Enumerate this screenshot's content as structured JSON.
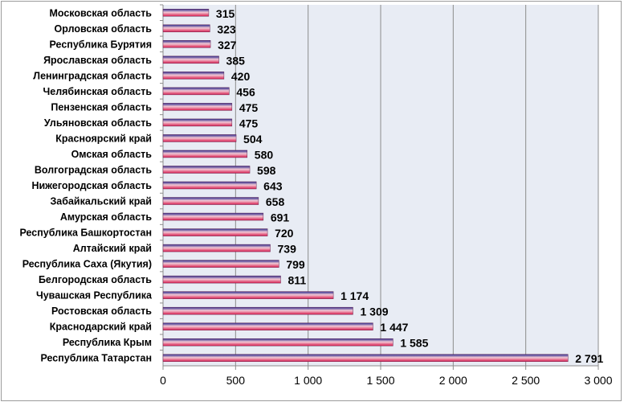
{
  "chart_data": {
    "type": "bar",
    "orientation": "horizontal",
    "title": "",
    "xlabel": "",
    "ylabel": "",
    "xlim": [
      0,
      3000
    ],
    "x_ticks": [
      0,
      500,
      1000,
      1500,
      2000,
      2500,
      3000
    ],
    "x_tick_labels": [
      "0",
      "500",
      "1 000",
      "1 500",
      "2 000",
      "2 500",
      "3 000"
    ],
    "grid": "vertical",
    "legend": "none",
    "categories": [
      "Московская область",
      "Орловская область",
      "Республика Бурятия",
      "Ярославская область",
      "Ленинградская область",
      "Челябинская область",
      "Пензенская область",
      "Ульяновская область",
      "Красноярский край",
      "Омская область",
      "Волгоградская область",
      "Нижегородская область",
      "Забайкальский край",
      "Амурская область",
      "Республика Башкортостан",
      "Алтайский край",
      "Республика Саха (Якутия)",
      "Белгородская область",
      "Чувашская Республика",
      "Ростовская область",
      "Краснодарский край",
      "Республика Крым",
      "Республика Татарстан"
    ],
    "values": [
      315,
      323,
      327,
      385,
      420,
      456,
      475,
      475,
      504,
      580,
      598,
      643,
      658,
      691,
      720,
      739,
      799,
      811,
      1174,
      1309,
      1447,
      1585,
      2791
    ],
    "value_labels": [
      "315",
      "323",
      "327",
      "385",
      "420",
      "456",
      "475",
      "475",
      "504",
      "580",
      "598",
      "643",
      "658",
      "691",
      "720",
      "739",
      "799",
      "811",
      "1 174",
      "1 309",
      "1 447",
      "1 585",
      "2 791"
    ],
    "colors": {
      "plot_background": "#e8ecf4",
      "gridline": "#8c8c8c",
      "bar_top": "#2d2a8c",
      "bar_mid": "#f2c8d4",
      "bar_bottom": "#d81b4e",
      "text": "#000000"
    }
  }
}
